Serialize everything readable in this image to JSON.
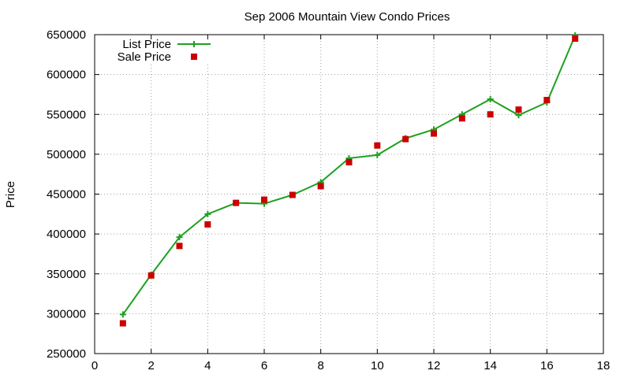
{
  "chart_data": {
    "type": "line",
    "title": "Sep 2006 Mountain View Condo Prices",
    "xlabel": "",
    "ylabel": "Price",
    "xlim": [
      0,
      18
    ],
    "ylim": [
      250000,
      650000
    ],
    "xticks": [
      0,
      2,
      4,
      6,
      8,
      10,
      12,
      14,
      16,
      18
    ],
    "yticks": [
      250000,
      300000,
      350000,
      400000,
      450000,
      500000,
      550000,
      600000,
      650000
    ],
    "grid": true,
    "legend_position": "top-left",
    "series": [
      {
        "name": "List Price",
        "style": "line-with-plus-markers",
        "color": "#1ea01e",
        "points": [
          [
            1,
            299000
          ],
          [
            2,
            349000
          ],
          [
            3,
            396000
          ],
          [
            4,
            425000
          ],
          [
            5,
            439000
          ],
          [
            6,
            438000
          ],
          [
            7,
            449000
          ],
          [
            8,
            465000
          ],
          [
            9,
            495000
          ],
          [
            10,
            499000
          ],
          [
            11,
            520000
          ],
          [
            12,
            531000
          ],
          [
            13,
            550000
          ],
          [
            14,
            569000
          ],
          [
            15,
            549000
          ],
          [
            16,
            565000
          ],
          [
            17,
            649000
          ]
        ]
      },
      {
        "name": "Sale Price",
        "style": "square-markers",
        "color": "#cc0000",
        "points": [
          [
            1,
            288000
          ],
          [
            2,
            348000
          ],
          [
            3,
            385000
          ],
          [
            4,
            412000
          ],
          [
            5,
            439000
          ],
          [
            6,
            443000
          ],
          [
            7,
            449000
          ],
          [
            8,
            460000
          ],
          [
            9,
            490000
          ],
          [
            10,
            511000
          ],
          [
            11,
            519000
          ],
          [
            12,
            526000
          ],
          [
            13,
            545000
          ],
          [
            14,
            550000
          ],
          [
            15,
            556000
          ],
          [
            16,
            568000
          ],
          [
            17,
            645000
          ]
        ]
      }
    ]
  }
}
